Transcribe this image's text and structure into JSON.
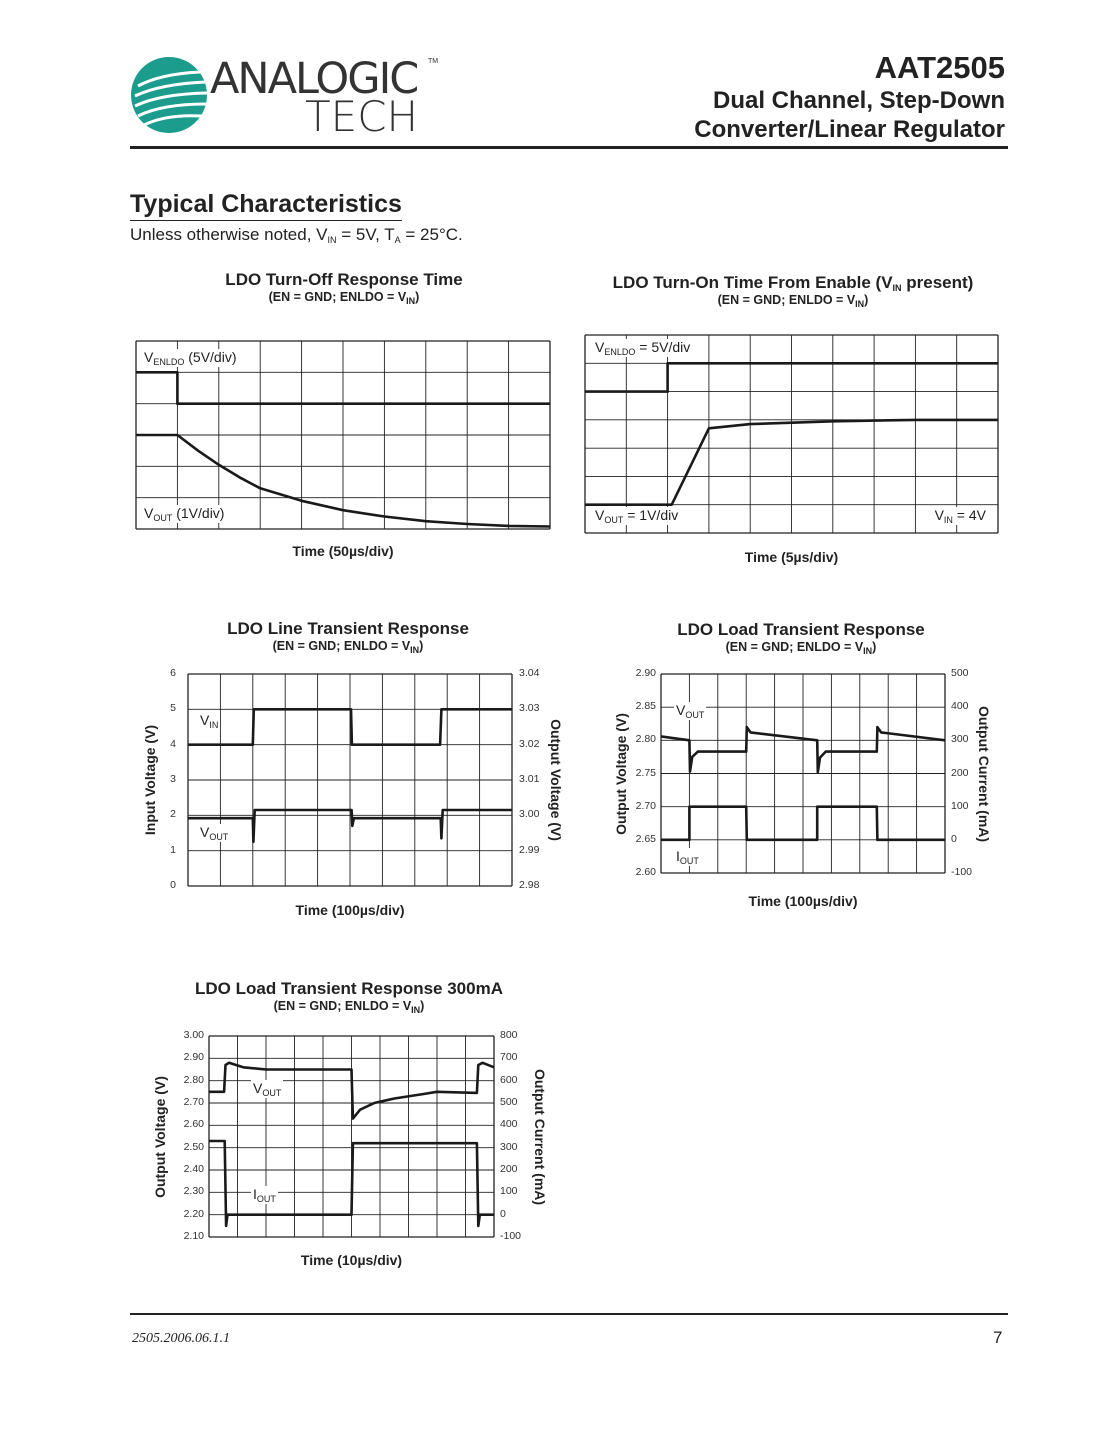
{
  "header": {
    "logo": {
      "line1": "ANALOGIC",
      "line2": "TECH",
      "tm": "TM",
      "color": "#1b9c8c"
    },
    "part_number": "AAT2505",
    "subtitle_line1": "Dual Channel, Step-Down",
    "subtitle_line2": "Converter/Linear Regulator"
  },
  "section": {
    "title": "Typical Characteristics",
    "note_parts": [
      "Unless otherwise noted, V",
      "IN",
      " = 5V, T",
      "A",
      " = 25°C."
    ]
  },
  "footer": {
    "doc_id": "2505.2006.06.1.1",
    "page_number": "7"
  },
  "chart_data": [
    {
      "type": "line",
      "title": "LDO Turn-Off Response Time",
      "subtitle_parts": [
        "(EN = GND; ENLDO = V",
        "IN",
        ")"
      ],
      "xlabel": "Time (50µs/div)",
      "x_unit": "µs",
      "xlim": [
        0,
        500
      ],
      "y_unit": "div",
      "ylim": [
        0,
        6
      ],
      "grid": true,
      "labels": [
        {
          "main": "V",
          "sub": "ENLDO",
          "rest": " (5V/div)"
        },
        {
          "main": "V",
          "sub": "OUT",
          "rest": " (1V/div)"
        }
      ],
      "series": [
        {
          "name": "VENLDO",
          "axis": "left",
          "points": [
            [
              0,
              5
            ],
            [
              50,
              5
            ],
            [
              50,
              4
            ],
            [
              500,
              4
            ]
          ]
        },
        {
          "name": "VOUT",
          "axis": "left",
          "points": [
            [
              0,
              3
            ],
            [
              50,
              3
            ],
            [
              75,
              2.5
            ],
            [
              100,
              2.05
            ],
            [
              125,
              1.65
            ],
            [
              150,
              1.3
            ],
            [
              200,
              0.9
            ],
            [
              250,
              0.6
            ],
            [
              300,
              0.4
            ],
            [
              350,
              0.25
            ],
            [
              400,
              0.16
            ],
            [
              450,
              0.1
            ],
            [
              500,
              0.08
            ]
          ]
        }
      ]
    },
    {
      "type": "line",
      "title_parts": [
        "LDO Turn-On Time From Enable (V",
        "IN",
        " present)"
      ],
      "subtitle_parts": [
        "(EN = GND; ENLDO = V",
        "IN",
        ")"
      ],
      "xlabel": "Time (5µs/div)",
      "x_unit": "µs",
      "xlim": [
        0,
        50
      ],
      "y_unit": "div",
      "ylim": [
        0,
        7
      ],
      "grid": true,
      "labels": [
        {
          "main": "V",
          "sub": "ENLDO",
          "rest": " = 5V/div"
        },
        {
          "main": "V",
          "sub": "OUT",
          "rest": " = 1V/div"
        },
        {
          "main": "V",
          "sub": "IN",
          "rest": " = 4V"
        }
      ],
      "series": [
        {
          "name": "VENLDO",
          "axis": "left",
          "points": [
            [
              0,
              5
            ],
            [
              10,
              5
            ],
            [
              10,
              6
            ],
            [
              50,
              6
            ]
          ]
        },
        {
          "name": "VOUT",
          "axis": "left",
          "points": [
            [
              0,
              1
            ],
            [
              10.5,
              1
            ],
            [
              15,
              3.7
            ],
            [
              20,
              3.85
            ],
            [
              30,
              3.95
            ],
            [
              40,
              4
            ],
            [
              50,
              4
            ]
          ]
        }
      ]
    },
    {
      "type": "line",
      "title": "LDO Line Transient Response",
      "subtitle_parts": [
        "(EN = GND; ENLDO = V",
        "IN",
        ")"
      ],
      "xlabel": "Time (100µs/div)",
      "ylabel": "Input Voltage (V)",
      "ylabel_right": "Output Voltage (V)",
      "xlim": [
        0,
        1000
      ],
      "ylim": [
        0,
        6
      ],
      "ylim_right": [
        2.98,
        3.04
      ],
      "grid": true,
      "yticks": [
        "0",
        "1",
        "2",
        "3",
        "4",
        "5",
        "6"
      ],
      "yticks_right": [
        "2.98",
        "2.99",
        "3.00",
        "3.01",
        "3.02",
        "3.03",
        "3.04"
      ],
      "labels": [
        {
          "main": "V",
          "sub": "IN",
          "rest": ""
        },
        {
          "main": "V",
          "sub": "OUT",
          "rest": ""
        }
      ],
      "series": [
        {
          "name": "VIN",
          "axis": "left",
          "points": [
            [
              0,
              4
            ],
            [
              200,
              4
            ],
            [
              203,
              5
            ],
            [
              503,
              5
            ],
            [
              506,
              4
            ],
            [
              778,
              4
            ],
            [
              782,
              5
            ],
            [
              1000,
              5
            ]
          ]
        },
        {
          "name": "VOUT",
          "axis": "right",
          "points": [
            [
              0,
              2.9992
            ],
            [
              200,
              2.9992
            ],
            [
              202,
              2.9925
            ],
            [
              206,
              3.0015
            ],
            [
              505,
              3.0015
            ],
            [
              507,
              2.997
            ],
            [
              512,
              2.9992
            ],
            [
              780,
              2.9992
            ],
            [
              782,
              2.9935
            ],
            [
              786,
              3.0015
            ],
            [
              1000,
              3.0015
            ]
          ]
        }
      ]
    },
    {
      "type": "line",
      "title": "LDO Load Transient Response",
      "subtitle_parts": [
        "(EN = GND; ENLDO = V",
        "IN",
        ")"
      ],
      "xlabel": "Time (100µs/div)",
      "ylabel": "Output Voltage (V)",
      "ylabel_right": "Output Current (mA)",
      "xlim": [
        0,
        1000
      ],
      "ylim": [
        2.6,
        2.9
      ],
      "ylim_right": [
        -100,
        500
      ],
      "grid": true,
      "yticks": [
        "2.60",
        "2.65",
        "2.70",
        "2.75",
        "2.80",
        "2.85",
        "2.90"
      ],
      "yticks_right": [
        "-100",
        "0",
        "100",
        "200",
        "300",
        "400",
        "500"
      ],
      "labels": [
        {
          "main": "V",
          "sub": "OUT",
          "rest": ""
        },
        {
          "main": "I",
          "sub": "OUT",
          "rest": ""
        }
      ],
      "series": [
        {
          "name": "VOUT",
          "axis": "left",
          "points": [
            [
              0,
              2.806
            ],
            [
              100,
              2.8
            ],
            [
              102,
              2.753
            ],
            [
              110,
              2.775
            ],
            [
              130,
              2.783
            ],
            [
              300,
              2.783
            ],
            [
              302,
              2.82
            ],
            [
              315,
              2.812
            ],
            [
              550,
              2.8
            ],
            [
              552,
              2.752
            ],
            [
              560,
              2.774
            ],
            [
              580,
              2.783
            ],
            [
              760,
              2.783
            ],
            [
              762,
              2.82
            ],
            [
              775,
              2.812
            ],
            [
              1000,
              2.8
            ]
          ]
        },
        {
          "name": "IOUT",
          "axis": "right",
          "points": [
            [
              0,
              0
            ],
            [
              100,
              0
            ],
            [
              100,
              100
            ],
            [
              300,
              100
            ],
            [
              302,
              0
            ],
            [
              550,
              0
            ],
            [
              550,
              100
            ],
            [
              760,
              100
            ],
            [
              762,
              0
            ],
            [
              1000,
              0
            ]
          ]
        }
      ]
    },
    {
      "type": "line",
      "title": "LDO Load Transient Response 300mA",
      "subtitle_parts": [
        "(EN = GND; ENLDO = V",
        "IN",
        ")"
      ],
      "xlabel": "Time (10µs/div)",
      "ylabel": "Output Voltage (V)",
      "ylabel_right": "Output Current (mA)",
      "xlim": [
        0,
        100
      ],
      "ylim": [
        2.1,
        3.0
      ],
      "ylim_right": [
        -100,
        800
      ],
      "grid": true,
      "yticks": [
        "2.10",
        "2.20",
        "2.30",
        "2.40",
        "2.50",
        "2.60",
        "2.70",
        "2.80",
        "2.90",
        "3.00"
      ],
      "yticks_right": [
        "-100",
        "0",
        "100",
        "200",
        "300",
        "400",
        "500",
        "600",
        "700",
        "800"
      ],
      "labels": [
        {
          "main": "V",
          "sub": "OUT",
          "rest": ""
        },
        {
          "main": "I",
          "sub": "OUT",
          "rest": ""
        }
      ],
      "series": [
        {
          "name": "VOUT",
          "axis": "left",
          "points": [
            [
              0,
              2.75
            ],
            [
              5.3,
              2.75
            ],
            [
              5.8,
              2.87
            ],
            [
              7,
              2.88
            ],
            [
              12,
              2.86
            ],
            [
              20,
              2.85
            ],
            [
              50,
              2.85
            ],
            [
              50.5,
              2.63
            ],
            [
              53,
              2.67
            ],
            [
              58,
              2.7
            ],
            [
              65,
              2.72
            ],
            [
              75,
              2.74
            ],
            [
              80,
              2.75
            ],
            [
              94,
              2.745
            ],
            [
              94.5,
              2.87
            ],
            [
              96,
              2.88
            ],
            [
              100,
              2.86
            ]
          ]
        },
        {
          "name": "IOUT",
          "axis": "right",
          "points": [
            [
              0,
              330
            ],
            [
              5.5,
              330
            ],
            [
              6,
              -50
            ],
            [
              6.5,
              0
            ],
            [
              50,
              0
            ],
            [
              50.5,
              320
            ],
            [
              94,
              320
            ],
            [
              94.5,
              -50
            ],
            [
              95,
              0
            ],
            [
              100,
              0
            ]
          ]
        }
      ]
    }
  ]
}
